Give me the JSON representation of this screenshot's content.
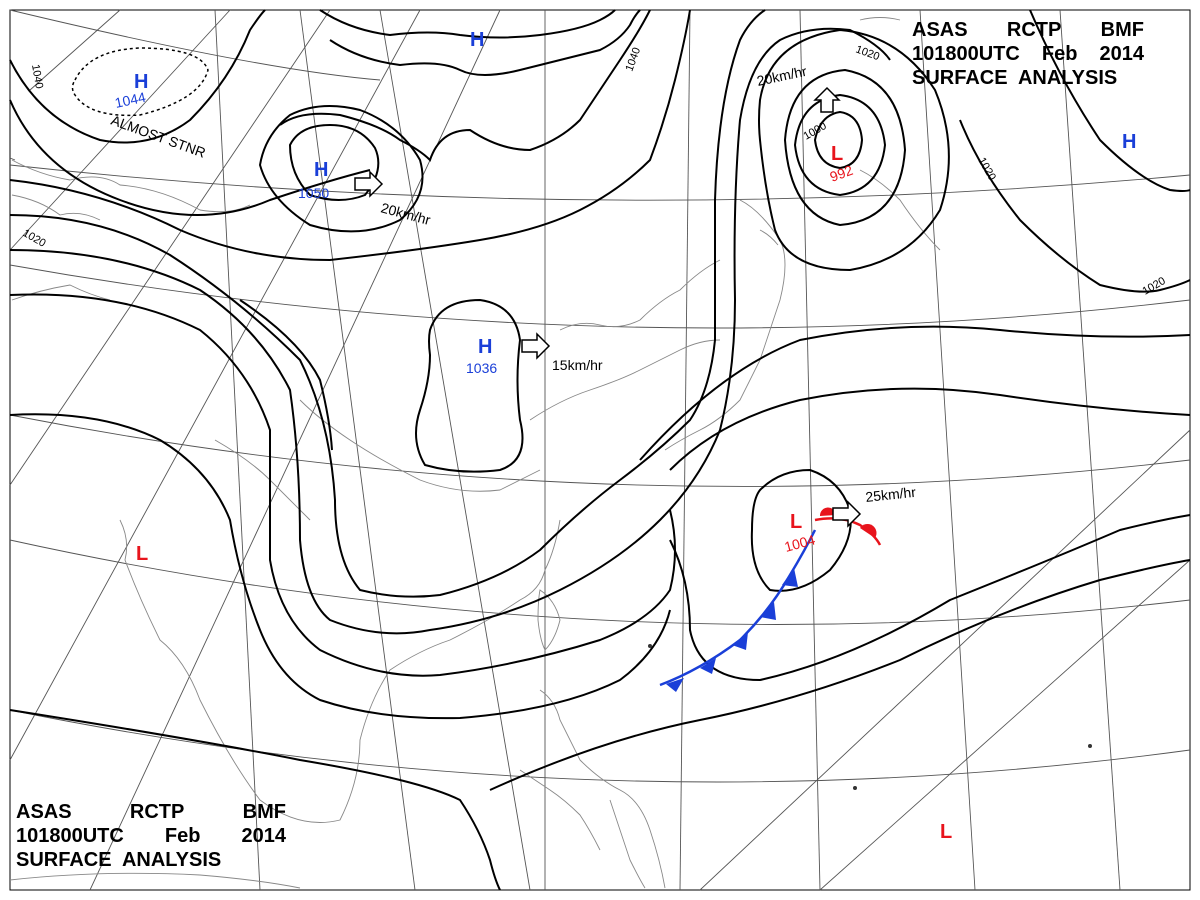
{
  "chart_header": {
    "line1": [
      "ASAS",
      "RCTP",
      "BMF"
    ],
    "line2": [
      "101800UTC",
      "Feb",
      "2014"
    ],
    "line3": "SURFACE  ANALYSIS"
  },
  "pressure_centers": [
    {
      "type": "H",
      "value": "1044",
      "note": "ALMOST STNR"
    },
    {
      "type": "H",
      "value": "1050",
      "motion": "20km/hr"
    },
    {
      "type": "H",
      "value": ""
    },
    {
      "type": "H",
      "value": "1036",
      "motion": "15km/hr"
    },
    {
      "type": "L",
      "value": "992",
      "motion": "20km/hr"
    },
    {
      "type": "H",
      "value": ""
    },
    {
      "type": "L",
      "value": "1004",
      "motion": "25km/hr"
    },
    {
      "type": "L",
      "value": ""
    },
    {
      "type": "L",
      "value": ""
    }
  ],
  "isobar_labels": [
    "1040",
    "1020",
    "1040",
    "1020",
    "1000",
    "1020",
    "1020"
  ],
  "colors": {
    "high": "#1a3fd8",
    "low": "#e8141c",
    "cold_front": "#1a3fd8",
    "warm_front": "#e8141c",
    "isobar": "#000000",
    "grid": "#444444",
    "coast": "#777777"
  }
}
